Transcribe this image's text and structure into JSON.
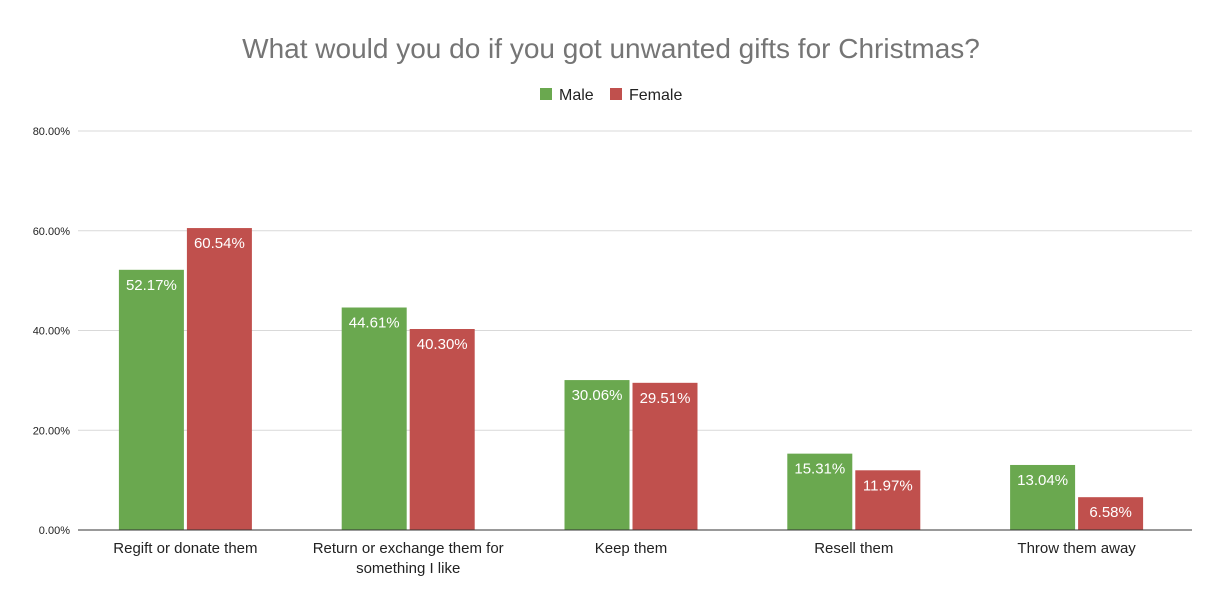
{
  "chart_data": {
    "type": "bar",
    "title": "What would you do if you got unwanted gifts for Christmas?",
    "categories": [
      [
        "Regift or donate them"
      ],
      [
        "Return or exchange them for",
        "something I like"
      ],
      [
        "Keep them"
      ],
      [
        "Resell them"
      ],
      [
        "Throw them away"
      ]
    ],
    "series": [
      {
        "name": "Male",
        "color": "#6aa84f",
        "values": [
          52.17,
          44.61,
          30.06,
          15.31,
          13.04
        ],
        "labels": [
          "52.17%",
          "44.61%",
          "30.06%",
          "15.31%",
          "13.04%"
        ]
      },
      {
        "name": "Female",
        "color": "#c0504d",
        "values": [
          60.54,
          40.3,
          29.51,
          11.97,
          6.58
        ],
        "labels": [
          "60.54%",
          "40.30%",
          "29.51%",
          "11.97%",
          "6.58%"
        ]
      }
    ],
    "ylim": [
      0,
      80
    ],
    "yticks": [
      0,
      20,
      40,
      60,
      80
    ],
    "ytick_labels": [
      "0.00%",
      "20.00%",
      "40.00%",
      "60.00%",
      "80.00%"
    ],
    "grid": true,
    "legend_position": "top-center"
  }
}
